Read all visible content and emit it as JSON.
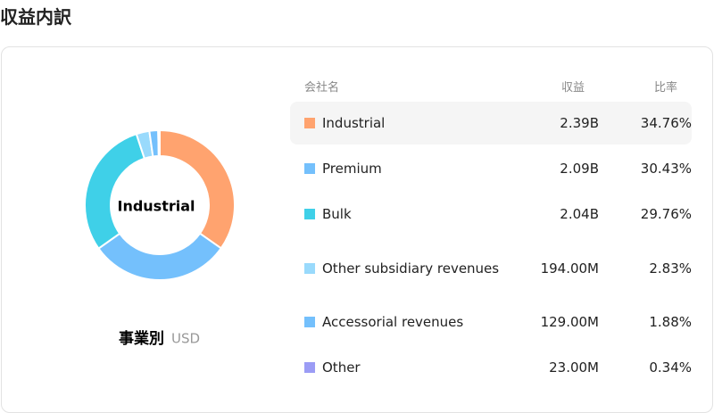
{
  "title": "収益内訳",
  "table": {
    "columns": [
      "会社名",
      "収益",
      "比率"
    ],
    "revenues": [
      "2.39B",
      "2.09B",
      "2.04B",
      "194.00M",
      "129.00M",
      "23.00M"
    ]
  },
  "chart_data": {
    "type": "donut",
    "dimension_label": "事業別",
    "unit": "USD",
    "categories": [
      "Industrial",
      "Premium",
      "Bulk",
      "Other subsidiary revenues",
      "Accessorial revenues",
      "Other"
    ],
    "values": [
      34.76,
      30.43,
      29.76,
      2.83,
      1.88,
      0.34
    ],
    "value_labels": [
      "34.76%",
      "30.43%",
      "29.76%",
      "2.83%",
      "1.88%",
      "0.34%"
    ],
    "colors": [
      "#ffa36f",
      "#74c0fc",
      "#3fd0e8",
      "#99dafc",
      "#74c0fc",
      "#9b9cf5"
    ]
  }
}
